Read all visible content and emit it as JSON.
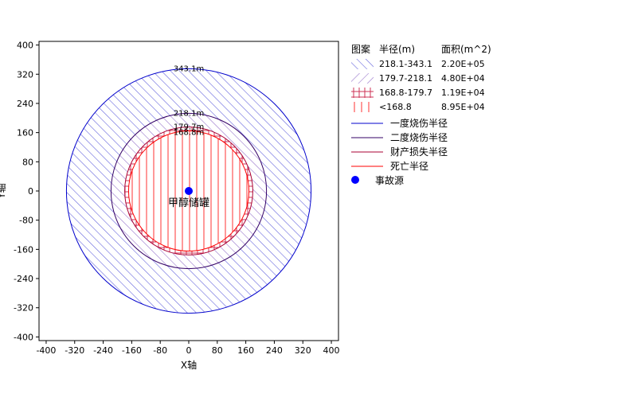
{
  "chart_data": {
    "type": "area",
    "xlabel": "X轴",
    "ylabel": "Y轴",
    "xlim": [
      -420,
      420
    ],
    "ylim": [
      -410,
      410
    ],
    "xticks": [
      -400,
      -320,
      -240,
      -160,
      -80,
      0,
      80,
      160,
      240,
      320,
      400
    ],
    "yticks": [
      400,
      320,
      240,
      160,
      80,
      0,
      -80,
      -160,
      -240,
      -320,
      -400
    ],
    "source": {
      "x": 0,
      "y": 0,
      "label": "甲醇储罐",
      "color": "#0000ff"
    },
    "rings": [
      {
        "radius": 343.1,
        "label": "343.1m",
        "color": "#0000cc",
        "hatch": "diagonal",
        "hatch_color": "#6666dd"
      },
      {
        "radius": 218.1,
        "label": "218.1m",
        "color": "#330066",
        "hatch": "diagonal",
        "hatch_color": "#9977cc"
      },
      {
        "radius": 179.7,
        "label": "179.7m",
        "color": "#aa0033",
        "hatch": "cross",
        "hatch_color": "#cc3355"
      },
      {
        "radius": 168.8,
        "label": "168.8m",
        "color": "#ff0000",
        "hatch": "vertical",
        "hatch_color": "#ff3333"
      }
    ],
    "legend": {
      "headers": {
        "pattern": "图案",
        "radius": "半径(m)",
        "area": "面积(m^2)"
      },
      "zones": [
        {
          "range": "218.1-343.1",
          "area": "2.20E+05",
          "hatch": "diagonal",
          "color": "#6666dd"
        },
        {
          "range": "179.7-218.1",
          "area": "4.80E+04",
          "hatch": "diagonal-rev",
          "color": "#9977cc"
        },
        {
          "range": "168.8-179.7",
          "area": "1.19E+04",
          "hatch": "cross",
          "color": "#cc3355"
        },
        {
          "range": "<168.8",
          "area": "8.95E+04",
          "hatch": "vertical",
          "color": "#ff3333"
        }
      ],
      "lines": [
        {
          "label": "一度烧伤半径",
          "color": "#0000cc"
        },
        {
          "label": "二度烧伤半径",
          "color": "#330066"
        },
        {
          "label": "财产损失半径",
          "color": "#aa0033"
        },
        {
          "label": "死亡半径",
          "color": "#ff0000"
        }
      ],
      "marker": {
        "label": "事故源",
        "color": "#0000ff"
      }
    }
  }
}
